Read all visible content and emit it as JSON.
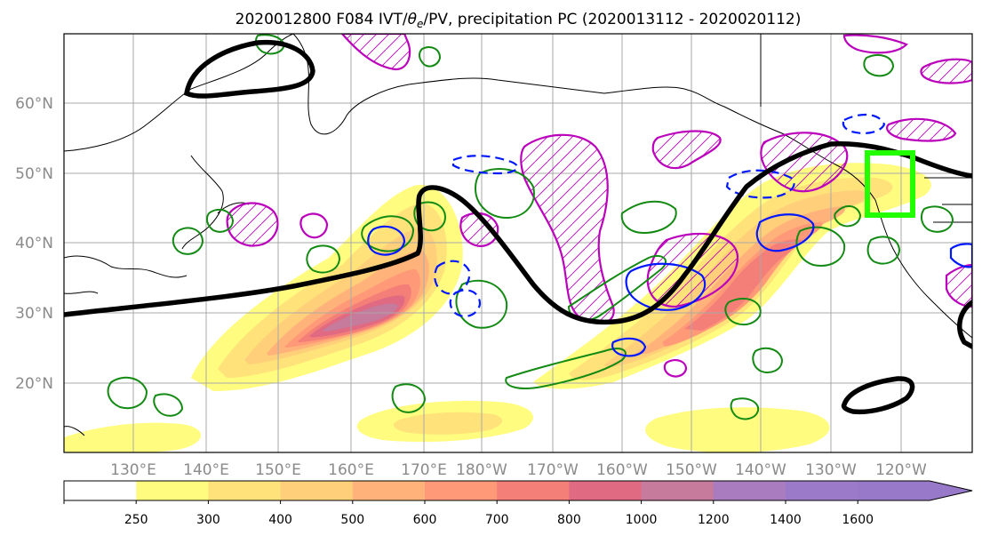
{
  "figure": {
    "title_prefix": "2020012800 F084 IVT/",
    "title_theta": "θ",
    "title_sub": "e",
    "title_suffix": "/PV, precipitation PC (2020013112 - 2020020112)"
  },
  "map": {
    "lat_labels": [
      "60°N",
      "50°N",
      "40°N",
      "30°N",
      "20°N"
    ],
    "lon_labels": [
      "130°E",
      "140°E",
      "150°E",
      "160°E",
      "170°E",
      "180°W",
      "170°W",
      "160°W",
      "150°W",
      "140°W",
      "130°W",
      "120°W"
    ],
    "ivt_fill_levels": [
      "#fffc80",
      "#ffe27a",
      "#ffcf7a",
      "#ffb37a",
      "#ff9977",
      "#f47e78",
      "#e06a82",
      "#c67a9c",
      "#a97bbf"
    ],
    "colors": {
      "theta_e_contour": "#000000",
      "pv_contour": "#bb00bb",
      "precip_pos": "#138a13",
      "precip_neg": "#0018ff",
      "target_box": "#22ff00"
    }
  },
  "colorbar": {
    "tick_labels": [
      "250",
      "300",
      "400",
      "500",
      "600",
      "700",
      "800",
      "1000",
      "1200",
      "1400",
      "1600"
    ],
    "colors": [
      "#ffffff",
      "#fffc80",
      "#ffe27a",
      "#ffcf7a",
      "#ffb37a",
      "#ff9977",
      "#f47e78",
      "#e06a82",
      "#c67a9c",
      "#a97bbf",
      "#9b7bc9",
      "#9878c8"
    ]
  }
}
